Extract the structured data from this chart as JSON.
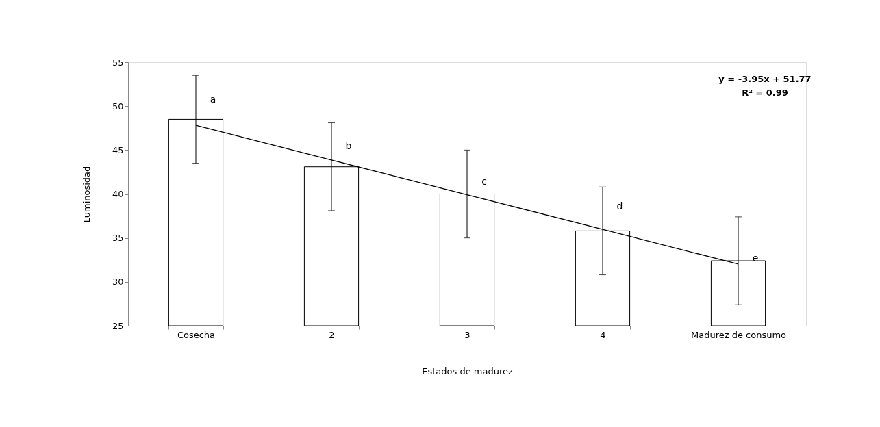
{
  "chart_data": {
    "type": "bar",
    "xlabel": "Estados de madurez",
    "ylabel": "Luminosidad",
    "categories": [
      "Cosecha",
      "2",
      "3",
      "4",
      "Madurez de consumo"
    ],
    "series": [
      {
        "color": "#ffffff",
        "values": [
          48.5,
          43.1,
          40.0,
          35.8,
          32.4
        ],
        "errors": [
          5,
          5,
          5,
          5,
          5
        ]
      },
      {
        "type": "line",
        "color": "#000000",
        "values": [
          47.82,
          43.87,
          39.92,
          35.97,
          32.02
        ]
      }
    ],
    "ylim": [
      25,
      55
    ],
    "yticks": [
      25,
      30,
      35,
      40,
      45,
      50,
      55
    ],
    "grid": false,
    "annotations": [
      {
        "text": "a",
        "x": "Cosecha",
        "y": 50.2
      },
      {
        "text": "b",
        "x": "2",
        "y": 44.9
      },
      {
        "text": "c",
        "x": "3",
        "y": 40.8
      },
      {
        "text": "d",
        "x": "4",
        "y": 38.0
      },
      {
        "text": "e",
        "x": "Madurez de consumo",
        "y": 32.1
      },
      "y = -3.95x + 51.77",
      "R² = 0.99"
    ]
  }
}
